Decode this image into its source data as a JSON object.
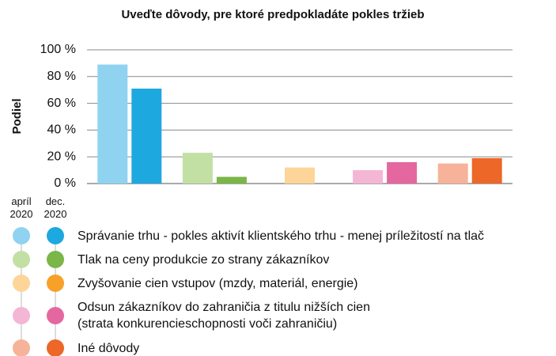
{
  "chart_data": {
    "type": "bar",
    "title": "Uveďte dôvody, pre ktoré predpokladáte pokles tržieb",
    "y_label": "Podiel",
    "categories": [
      "Správanie trhu - pokles aktivít klientského trhu - menej príležitostí na tlač",
      "Tlak na ceny produkcie zo strany zákazníkov",
      "Zvyšovanie cien vstupov (mzdy, materiál, energie)",
      "Odsun zákazníkov do zahraničia z titulu nižších cien\n(strata konkurencieschopnosti voči zahraničiu)",
      "Iné dôvody"
    ],
    "series": [
      {
        "name": "apríl\n2020",
        "colors": [
          "#8fd3f0",
          "#c3e0a4",
          "#fdd599",
          "#f4b6d4",
          "#f6b39a"
        ],
        "values": [
          89,
          23,
          12,
          10,
          15
        ]
      },
      {
        "name": "dec.\n2020",
        "colors": [
          "#1ea8e0",
          "#7ab648",
          "#f7a128",
          "#e4689f",
          "#ec6728"
        ],
        "values": [
          71,
          5,
          null,
          16,
          19
        ]
      }
    ],
    "ylim": [
      0,
      100
    ],
    "yticks": [
      {
        "value": 0,
        "label": "0 %"
      },
      {
        "value": 20,
        "label": "20 %"
      },
      {
        "value": 40,
        "label": "40 %"
      },
      {
        "value": 60,
        "label": "60 %"
      },
      {
        "value": 80,
        "label": "80 %"
      },
      {
        "value": 100,
        "label": "100 %"
      }
    ],
    "grid": true
  }
}
